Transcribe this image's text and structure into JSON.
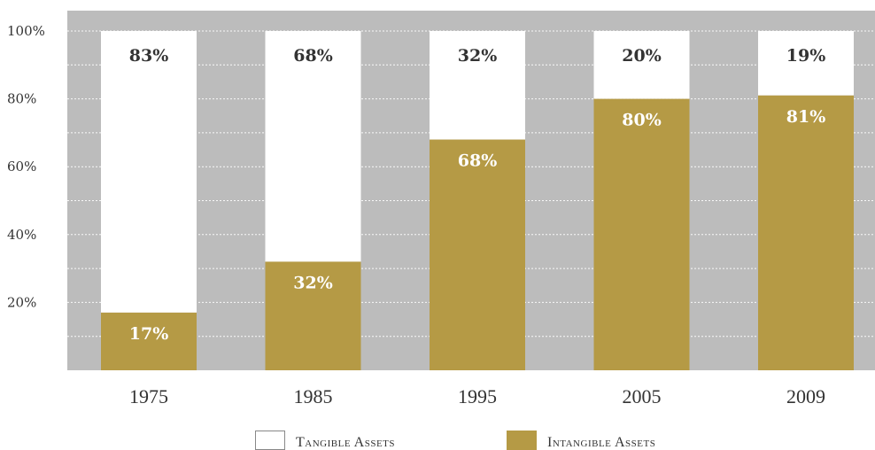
{
  "chart_data": {
    "type": "bar",
    "stacked": true,
    "categories": [
      "1975",
      "1985",
      "1995",
      "2005",
      "2009"
    ],
    "series": [
      {
        "name": "Intangible Assets",
        "values": [
          17,
          32,
          68,
          80,
          81
        ],
        "labels": [
          "17%",
          "32%",
          "68%",
          "80%",
          "81%"
        ]
      },
      {
        "name": "Tangible Assets",
        "values": [
          83,
          68,
          32,
          20,
          19
        ],
        "labels": [
          "83%",
          "68%",
          "32%",
          "20%",
          "19%"
        ]
      }
    ],
    "yticks": [
      {
        "value": 20,
        "label": "20%"
      },
      {
        "value": 40,
        "label": "40%"
      },
      {
        "value": 60,
        "label": "60%"
      },
      {
        "value": 80,
        "label": "80%"
      },
      {
        "value": 100,
        "label": "100%"
      }
    ],
    "ylim": [
      0,
      100
    ],
    "grid": true,
    "legend_position": "bottom",
    "colors": {
      "background": "#bcbcbc",
      "intangible": "#b59a45",
      "tangible": "#ffffff",
      "grid": "#ffffff",
      "tangible_label": "#333333",
      "intangible_label": "#ffffff"
    }
  },
  "legend": {
    "tangible_label": "Tangible Assets",
    "intangible_label": "Intangible Assets"
  }
}
